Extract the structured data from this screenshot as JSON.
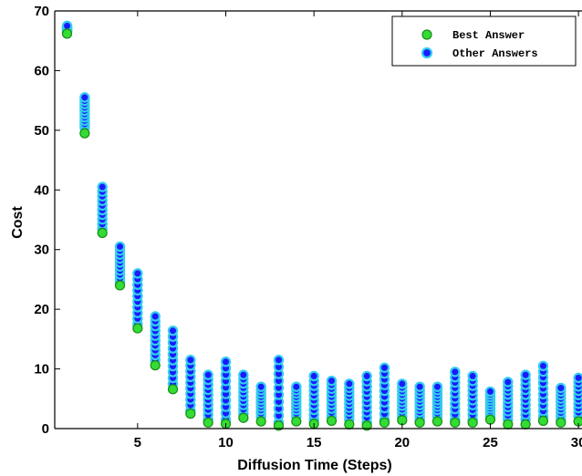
{
  "chart_data": {
    "type": "scatter",
    "title": "",
    "xlabel": "Diffusion Time (Steps)",
    "ylabel": "Cost",
    "xlim": [
      0.3,
      30.2
    ],
    "ylim": [
      0,
      70
    ],
    "xticks": [
      5,
      10,
      15,
      20,
      25,
      30
    ],
    "yticks": [
      0,
      10,
      20,
      30,
      40,
      50,
      60,
      70
    ],
    "grid": false,
    "legend_position": "top-right",
    "colors": {
      "best_fill": "#33dd33",
      "best_edge": "#1a8a1a",
      "other_fill": "#1a1aff",
      "other_edge": "#33ccee"
    },
    "series": [
      {
        "name": "Best Answer",
        "x": [
          1,
          2,
          3,
          4,
          5,
          6,
          7,
          8,
          9,
          10,
          11,
          12,
          13,
          14,
          15,
          16,
          17,
          18,
          19,
          20,
          21,
          22,
          23,
          24,
          25,
          26,
          27,
          28,
          29,
          30
        ],
        "y": [
          66.2,
          49.5,
          32.8,
          24.0,
          16.8,
          10.6,
          6.6,
          2.5,
          1.0,
          0.8,
          1.8,
          1.2,
          0.5,
          1.2,
          0.8,
          1.3,
          0.7,
          0.5,
          1.0,
          1.4,
          1.0,
          1.2,
          1.0,
          1.0,
          1.5,
          0.7,
          0.7,
          1.3,
          1.0,
          1.2
        ]
      },
      {
        "name": "Other Answers",
        "x": [
          1,
          2,
          3,
          4,
          5,
          6,
          7,
          8,
          9,
          10,
          11,
          12,
          13,
          14,
          15,
          16,
          17,
          18,
          19,
          20,
          21,
          22,
          23,
          24,
          25,
          26,
          27,
          28,
          29,
          30
        ],
        "y_min": [
          66.5,
          50.5,
          33.5,
          24.5,
          17.5,
          11.5,
          7.5,
          3.0,
          1.5,
          1.5,
          2.5,
          2.0,
          1.0,
          2.0,
          1.5,
          2.0,
          1.5,
          1.0,
          1.5,
          2.0,
          1.5,
          2.0,
          1.5,
          1.5,
          2.0,
          1.5,
          1.5,
          2.0,
          1.5,
          2.0
        ],
        "y_max": [
          67.5,
          55.5,
          40.5,
          30.5,
          26.0,
          18.8,
          16.4,
          11.5,
          9.0,
          11.2,
          9.0,
          7.0,
          11.5,
          7.0,
          8.8,
          8.0,
          7.5,
          8.8,
          10.2,
          7.5,
          7.0,
          7.0,
          9.5,
          8.8,
          6.2,
          7.8,
          9.0,
          10.5,
          6.8,
          8.5
        ],
        "points_per_step": 10
      }
    ]
  }
}
